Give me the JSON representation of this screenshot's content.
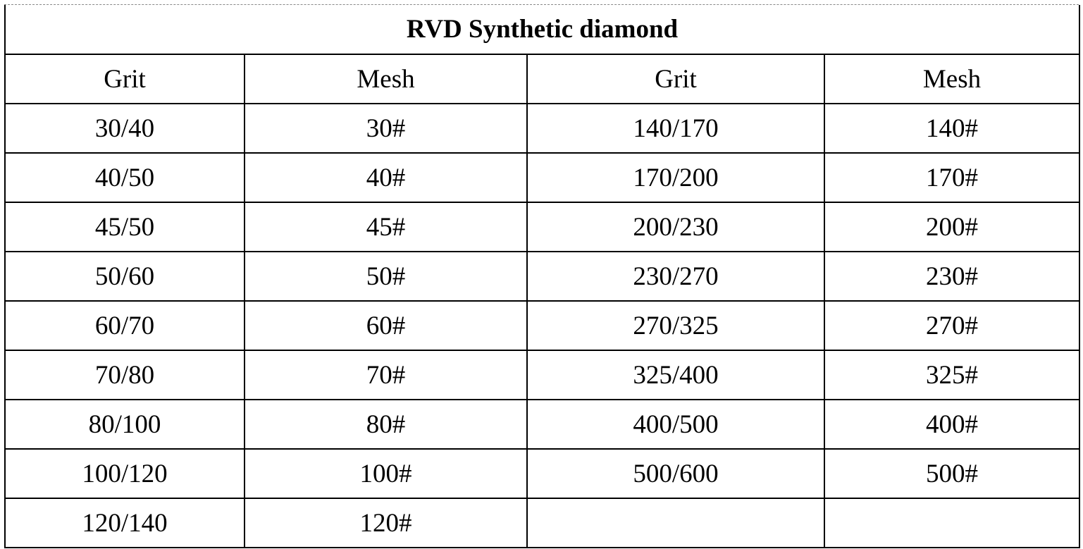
{
  "table": {
    "title": "RVD Synthetic diamond",
    "headers": [
      "Grit",
      "Mesh",
      "Grit",
      "Mesh"
    ],
    "rows": [
      [
        "30/40",
        "30#",
        "140/170",
        "140#"
      ],
      [
        "40/50",
        "40#",
        "170/200",
        "170#"
      ],
      [
        "45/50",
        "45#",
        "200/230",
        "200#"
      ],
      [
        "50/60",
        "50#",
        "230/270",
        "230#"
      ],
      [
        "60/70",
        "60#",
        "270/325",
        "270#"
      ],
      [
        "70/80",
        "70#",
        "325/400",
        "325#"
      ],
      [
        "80/100",
        "80#",
        "400/500",
        "400#"
      ],
      [
        "100/120",
        "100#",
        "500/600",
        "500#"
      ],
      [
        "120/140",
        "120#",
        "",
        ""
      ]
    ]
  }
}
